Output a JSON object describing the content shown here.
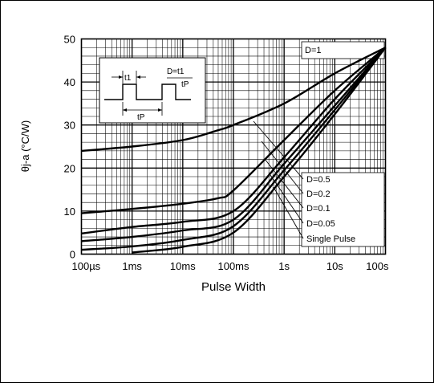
{
  "chart_data": {
    "type": "line",
    "xscale": "log",
    "xlabel": "Pulse Width",
    "ylabel": "θj-a (°C/W)",
    "xlim": [
      "100µs",
      "100s"
    ],
    "ylim": [
      0,
      50
    ],
    "grid": true,
    "x_ticks": [
      "100µs",
      "1ms",
      "10ms",
      "100ms",
      "1s",
      "10s",
      "100s"
    ],
    "y_ticks": [
      "0",
      "10",
      "20",
      "30",
      "40",
      "50"
    ],
    "x_tick_seconds": [
      0.0001,
      0.001,
      0.01,
      0.1,
      1,
      10,
      100
    ],
    "series": [
      {
        "name": "D=1",
        "points": [
          [
            "100µs",
            24.0
          ],
          [
            "1ms",
            25.0
          ],
          [
            "10ms",
            26.5
          ],
          [
            "50ms",
            28.8
          ],
          [
            "100ms",
            30.0
          ],
          [
            "1s",
            35.0
          ],
          [
            "10s",
            42.0
          ],
          [
            "100s",
            48.0
          ]
        ]
      },
      {
        "name": "D=0.5",
        "points": [
          [
            "100µs",
            9.5
          ],
          [
            "1ms",
            10.5
          ],
          [
            "10ms",
            11.7
          ],
          [
            "50ms",
            13.0
          ],
          [
            "100ms",
            14.8
          ],
          [
            "1s",
            26.5
          ],
          [
            "10s",
            38.0
          ],
          [
            "100s",
            48.0
          ]
        ]
      },
      {
        "name": "D=0.2",
        "points": [
          [
            "100µs",
            4.8
          ],
          [
            "1ms",
            6.3
          ],
          [
            "10ms",
            7.5
          ],
          [
            "100ms",
            10.0
          ],
          [
            "1s",
            22.5
          ],
          [
            "10s",
            36.0
          ],
          [
            "100s",
            48.0
          ]
        ]
      },
      {
        "name": "D=0.1",
        "points": [
          [
            "100µs",
            3.0
          ],
          [
            "1ms",
            4.0
          ],
          [
            "10ms",
            5.5
          ],
          [
            "100ms",
            8.0
          ],
          [
            "1s",
            21.0
          ],
          [
            "10s",
            34.5
          ],
          [
            "100s",
            48.0
          ]
        ]
      },
      {
        "name": "D=0.05",
        "points": [
          [
            "100µs",
            1.0
          ],
          [
            "1ms",
            1.8
          ],
          [
            "10ms",
            3.3
          ],
          [
            "100ms",
            6.5
          ],
          [
            "1s",
            19.5
          ],
          [
            "10s",
            33.5
          ],
          [
            "100s",
            48.0
          ]
        ]
      },
      {
        "name": "Single Pulse",
        "points": [
          [
            "1ms",
            0.4
          ],
          [
            "10ms",
            1.7
          ],
          [
            "100ms",
            5.0
          ],
          [
            "1s",
            18.0
          ],
          [
            "10s",
            32.5
          ],
          [
            "100s",
            48.0
          ]
        ]
      }
    ],
    "inset": {
      "t1_label": "t1",
      "tp_label": "tP",
      "formula_label": "D=t1",
      "formula_denominator": "tP"
    },
    "legend_placement": "right"
  }
}
